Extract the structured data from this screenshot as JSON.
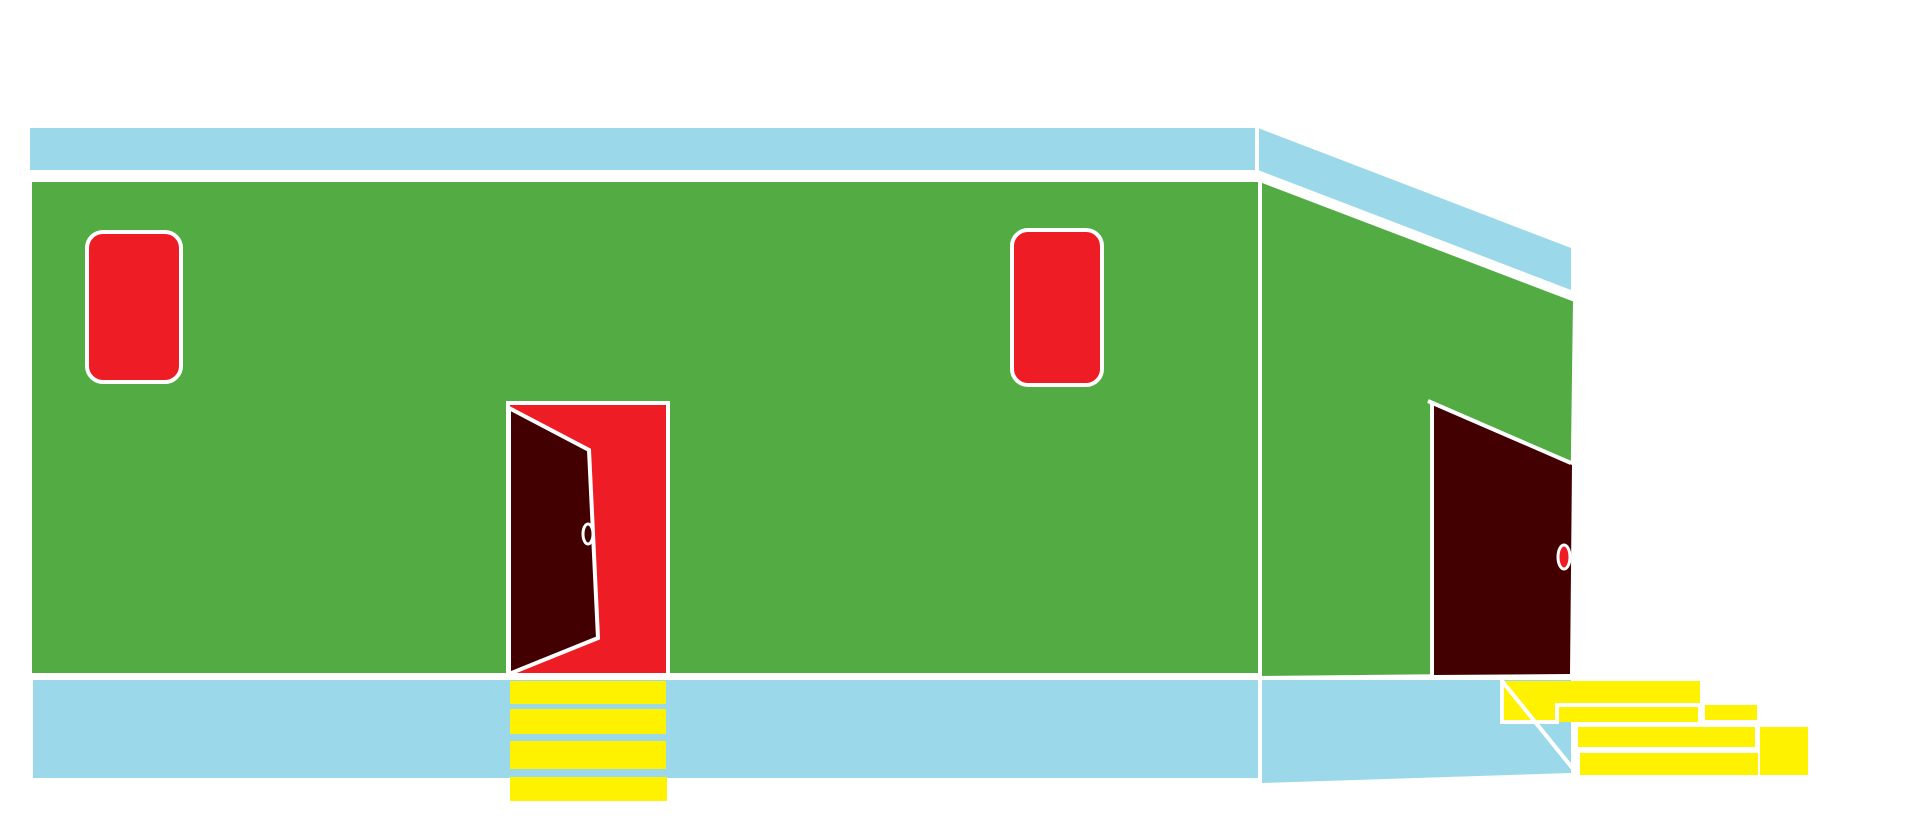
{
  "scene": {
    "colors": {
      "background": "#ffffff",
      "wall": "#52ac43",
      "roof_trim": "#9bd9ea",
      "foundation": "#9bd9ea",
      "window": "#ee1c25",
      "door_frame": "#ee1c25",
      "door_leaf": "#430000",
      "steps": "#fff200",
      "outline": "#ffffff"
    },
    "icons": {
      "front_door": "open-door-icon",
      "side_door": "open-door-icon",
      "window": "window-icon",
      "steps": "stairs-icon"
    }
  }
}
